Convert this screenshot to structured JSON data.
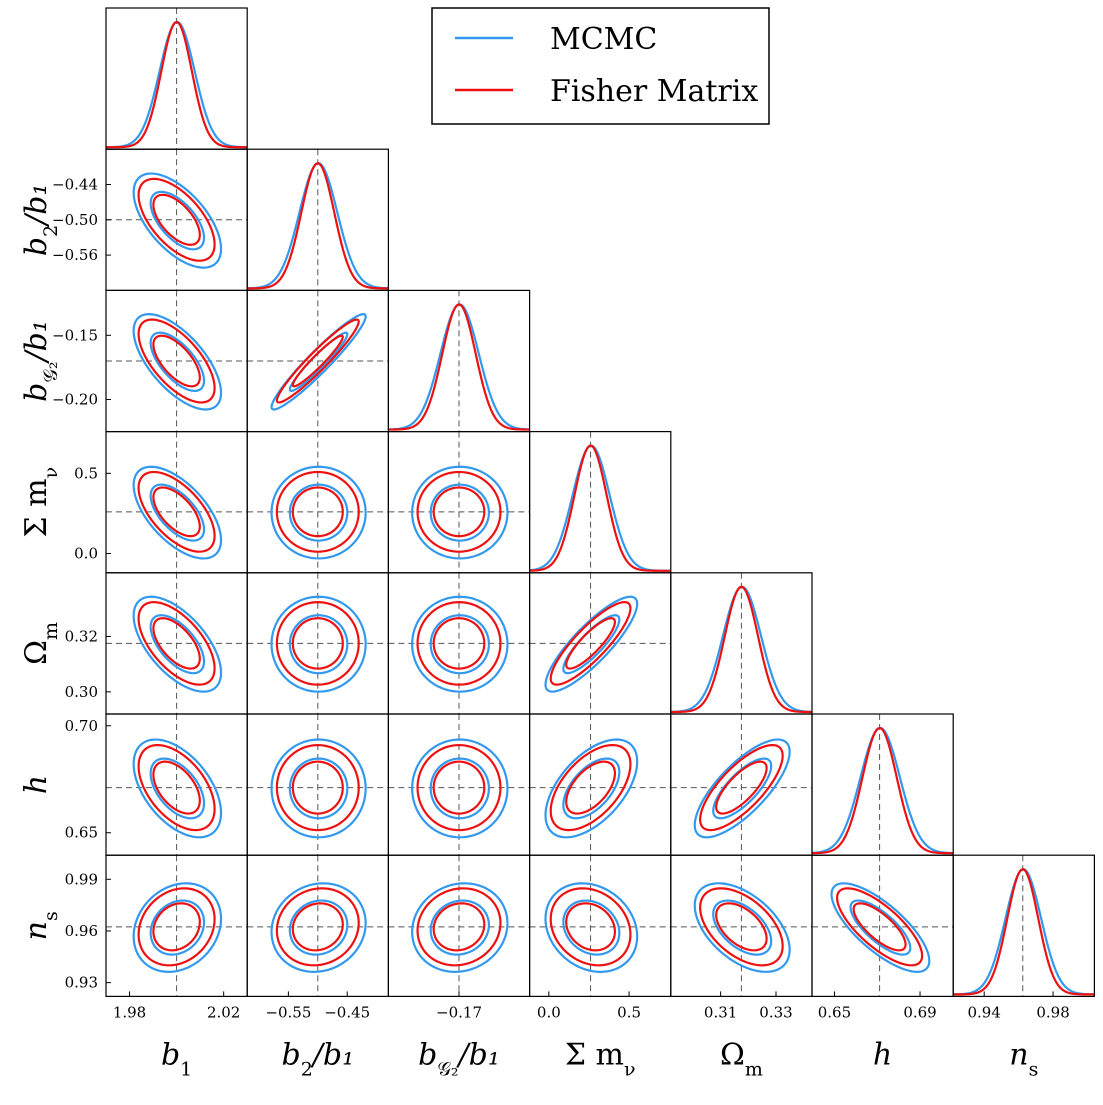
{
  "chart_data": {
    "type": "triangle",
    "title": "",
    "parameters": [
      {
        "key": "b1",
        "tex_main": "b",
        "tex_sub": "1",
        "tex_tail": "",
        "fiducial": 2.0,
        "range": [
          1.97,
          2.03
        ],
        "sigma": 0.0065,
        "x_ticks": [
          "1.98",
          "2.02"
        ],
        "x_tick_values": [
          1.98,
          2.02
        ],
        "y_ticks": [],
        "y_tick_values": []
      },
      {
        "key": "b2_over_b1",
        "tex_main": "b",
        "tex_sub": "2",
        "tex_tail": "/b₁",
        "fiducial": -0.5,
        "range": [
          -0.62,
          -0.38
        ],
        "sigma": 0.028,
        "x_ticks": [
          "−0.55",
          "−0.45"
        ],
        "x_tick_values": [
          -0.55,
          -0.45
        ],
        "y_ticks": [
          "−0.44",
          "−0.50",
          "−0.56"
        ],
        "y_tick_values": [
          -0.44,
          -0.5,
          -0.56
        ]
      },
      {
        "key": "bG2_over_b1",
        "tex_main": "b",
        "tex_sub": "𝒢₂",
        "tex_tail": "/b₁",
        "fiducial": -0.17,
        "range": [
          -0.225,
          -0.115
        ],
        "sigma": 0.013,
        "x_ticks": [
          "−0.17"
        ],
        "x_tick_values": [
          -0.17
        ],
        "y_ticks": [
          "−0.15",
          "−0.20"
        ],
        "y_tick_values": [
          -0.15,
          -0.2
        ]
      },
      {
        "key": "sum_mnu",
        "tex_main": "Σ m",
        "tex_sub": "ν",
        "tex_tail": "",
        "fiducial": 0.26,
        "range": [
          -0.12,
          0.76
        ],
        "sigma": 0.1,
        "x_ticks": [
          "0.0",
          "0.5"
        ],
        "x_tick_values": [
          0.0,
          0.5
        ],
        "y_ticks": [
          "0.5",
          "0.0"
        ],
        "y_tick_values": [
          0.5,
          0.0
        ]
      },
      {
        "key": "omega_m",
        "tex_main": "Ω",
        "tex_sub": "m",
        "tex_tail": "",
        "fiducial": 0.3175,
        "range": [
          0.292,
          0.343
        ],
        "sigma": 0.006,
        "x_ticks": [
          "0.31",
          "0.33"
        ],
        "x_tick_values": [
          0.31,
          0.33
        ],
        "y_ticks": [
          "0.32",
          "0.30"
        ],
        "y_tick_values": [
          0.32,
          0.3
        ]
      },
      {
        "key": "h",
        "tex_main": "h",
        "tex_sub": "",
        "tex_tail": "",
        "fiducial": 0.6711,
        "range": [
          0.6395,
          0.7055
        ],
        "sigma": 0.008,
        "x_ticks": [
          "0.65",
          "0.69"
        ],
        "x_tick_values": [
          0.65,
          0.69
        ],
        "y_ticks": [
          "0.70",
          "0.65"
        ],
        "y_tick_values": [
          0.7,
          0.65
        ]
      },
      {
        "key": "n_s",
        "tex_main": "n",
        "tex_sub": "s",
        "tex_tail": "",
        "fiducial": 0.9624,
        "range": [
          0.922,
          1.004
        ],
        "sigma": 0.009,
        "x_ticks": [
          "0.94",
          "0.98"
        ],
        "x_tick_values": [
          0.94,
          0.98
        ],
        "y_ticks": [
          "0.99",
          "0.96",
          "0.93"
        ],
        "y_tick_values": [
          0.99,
          0.96,
          0.93
        ]
      }
    ],
    "correlations": [
      [
        1,
        -0.6,
        -0.65,
        -0.6,
        -0.6,
        -0.5,
        0.2
      ],
      [
        -0.6,
        1,
        0.95,
        0.0,
        0.0,
        0.0,
        0.1
      ],
      [
        -0.65,
        0.95,
        1,
        0.0,
        0.0,
        0.0,
        0.1
      ],
      [
        -0.6,
        0.0,
        0.0,
        1,
        0.85,
        0.55,
        -0.2
      ],
      [
        -0.6,
        0.0,
        0.0,
        0.85,
        1,
        0.75,
        -0.5
      ],
      [
        -0.5,
        0.0,
        0.0,
        0.55,
        0.75,
        1,
        -0.75
      ],
      [
        0.2,
        0.1,
        0.1,
        -0.2,
        -0.5,
        -0.75,
        1
      ]
    ],
    "confidence_levels": [
      0.68,
      0.95
    ],
    "series": [
      {
        "name": "MCMC",
        "color": "#3399ee",
        "width_scale": 1.15,
        "offset_scale": 0.12
      },
      {
        "name": "Fisher Matrix",
        "color": "#ee1111",
        "width_scale": 1.0,
        "offset_scale": 0.0
      }
    ],
    "legend": {
      "placement": "top-right",
      "entries": [
        "MCMC",
        "Fisher Matrix"
      ]
    },
    "fiducial_line_color": "#555555"
  }
}
